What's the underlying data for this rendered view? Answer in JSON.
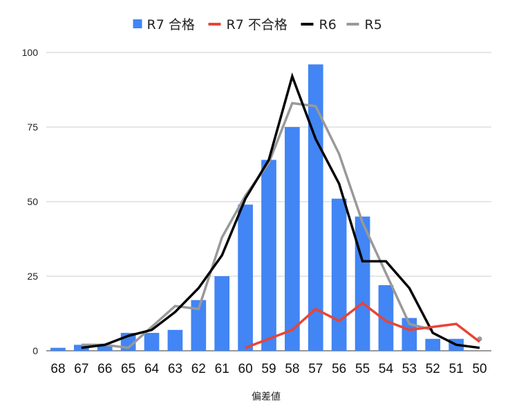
{
  "chart_data": {
    "type": "bar",
    "categories": [
      "68",
      "67",
      "66",
      "65",
      "64",
      "63",
      "62",
      "61",
      "60",
      "59",
      "58",
      "57",
      "56",
      "55",
      "54",
      "53",
      "52",
      "51",
      "50"
    ],
    "xlabel": "偏差値",
    "ylabel": "",
    "ylim": [
      0,
      100
    ],
    "yticks": [
      "0",
      "25",
      "50",
      "75",
      "100"
    ],
    "grid": true,
    "legend_position": "top",
    "series": [
      {
        "name": "R7 合格",
        "kind": "bar",
        "color": "#4285f4",
        "values": [
          1,
          2,
          2,
          6,
          6,
          7,
          17,
          25,
          49,
          64,
          75,
          96,
          51,
          45,
          22,
          11,
          4,
          4,
          null
        ]
      },
      {
        "name": "R7 不合格",
        "kind": "line",
        "color": "#ea4335",
        "values": [
          null,
          null,
          null,
          null,
          null,
          null,
          null,
          null,
          1,
          4,
          7,
          14,
          10,
          16,
          10,
          7,
          8,
          9,
          3
        ]
      },
      {
        "name": "R6",
        "kind": "line",
        "color": "#000000",
        "values": [
          null,
          1,
          2,
          5,
          7,
          13,
          21,
          32,
          51,
          64,
          92,
          71,
          56,
          30,
          30,
          21,
          6,
          2,
          1
        ]
      },
      {
        "name": "R5",
        "kind": "line",
        "color": "#999999",
        "values": [
          null,
          2,
          2,
          1,
          8,
          15,
          14,
          38,
          52,
          63,
          83,
          82,
          66,
          43,
          26,
          9,
          7,
          null,
          4
        ]
      }
    ]
  }
}
